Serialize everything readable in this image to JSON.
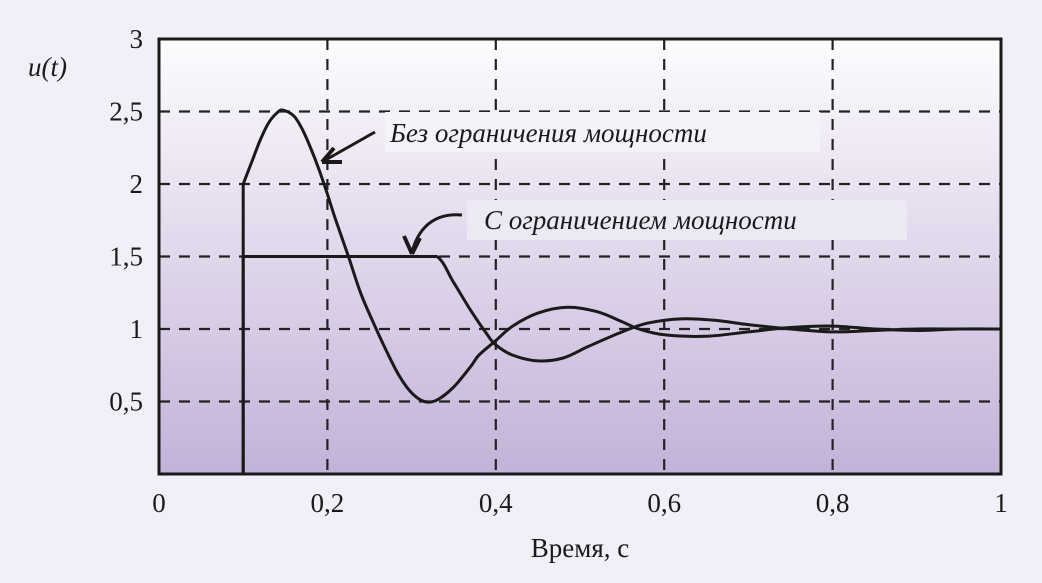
{
  "chart_data": {
    "type": "line",
    "title": "",
    "xlabel": "Время, с",
    "ylabel": "u(t)",
    "xlim": [
      0,
      1
    ],
    "ylim": [
      0,
      3
    ],
    "grid": true,
    "legend": "none (curves labelled by arrow annotations)",
    "x_ticks": [
      "0",
      "0,2",
      "0,4",
      "0,6",
      "0,8",
      "1"
    ],
    "y_ticks": [
      "0,5",
      "1",
      "1,5",
      "2",
      "2,5",
      "3"
    ],
    "series": [
      {
        "name": "Без ограничения мощности",
        "x": [
          0.1,
          0.1,
          0.11,
          0.12,
          0.13,
          0.14,
          0.147,
          0.16,
          0.17,
          0.18,
          0.19,
          0.2,
          0.21,
          0.225,
          0.24,
          0.258,
          0.27,
          0.285,
          0.3,
          0.315,
          0.33,
          0.35,
          0.37,
          0.38,
          0.4,
          0.42,
          0.45,
          0.485,
          0.52,
          0.55,
          0.57,
          0.6,
          0.65,
          0.7,
          0.75,
          0.8,
          0.85,
          0.9,
          0.95,
          1.0
        ],
        "y": [
          0.0,
          2.0,
          2.15,
          2.3,
          2.42,
          2.49,
          2.51,
          2.47,
          2.38,
          2.25,
          2.1,
          1.93,
          1.75,
          1.5,
          1.24,
          1.0,
          0.85,
          0.68,
          0.56,
          0.5,
          0.51,
          0.6,
          0.74,
          0.82,
          0.92,
          1.02,
          1.11,
          1.15,
          1.12,
          1.05,
          1.0,
          0.96,
          0.95,
          0.98,
          1.01,
          1.02,
          1.0,
          0.99,
          1.0,
          1.0
        ]
      },
      {
        "name": "С ограничением мощности",
        "x": [
          0.1,
          0.1,
          0.2,
          0.3,
          0.33,
          0.35,
          0.37,
          0.39,
          0.4,
          0.42,
          0.45,
          0.48,
          0.51,
          0.55,
          0.58,
          0.62,
          0.66,
          0.7,
          0.75,
          0.8,
          0.85,
          0.9,
          0.95,
          1.0
        ],
        "y": [
          0.0,
          1.5,
          1.5,
          1.5,
          1.5,
          1.32,
          1.13,
          0.96,
          0.89,
          0.82,
          0.78,
          0.8,
          0.88,
          0.98,
          1.04,
          1.07,
          1.06,
          1.03,
          1.0,
          0.98,
          0.99,
          1.0,
          1.0,
          1.0
        ]
      }
    ],
    "annotations": [
      {
        "text": "Без ограничения мощности",
        "arrow_to": [
          0.19,
          2.07
        ]
      },
      {
        "text": "С ограничением мощности",
        "arrow_to": [
          0.3,
          1.5
        ]
      }
    ]
  },
  "colors": {
    "background": "#f1f0f8",
    "plot_top": "#fdfcfe",
    "plot_bottom": "#c3b2d8",
    "line": "#1a1a1a",
    "grid": "#222222"
  }
}
